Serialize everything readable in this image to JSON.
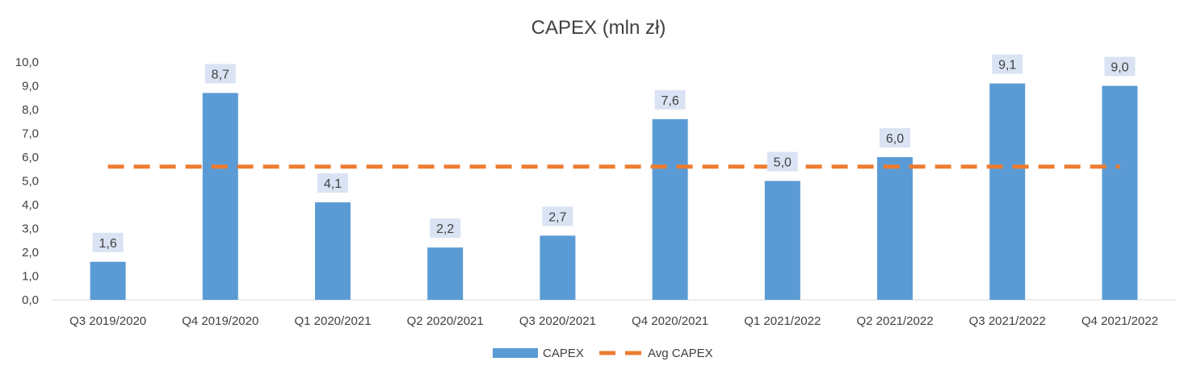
{
  "chart_data": {
    "type": "bar",
    "title": "CAPEX (mln zł)",
    "categories": [
      "Q3 2019/2020",
      "Q4 2019/2020",
      "Q1 2020/2021",
      "Q2 2020/2021",
      "Q3 2020/2021",
      "Q4 2020/2021",
      "Q1 2021/2022",
      "Q2 2021/2022",
      "Q3 2021/2022",
      "Q4 2021/2022"
    ],
    "series": [
      {
        "name": "CAPEX",
        "type": "bar",
        "values": [
          1.6,
          8.7,
          4.1,
          2.2,
          2.7,
          7.6,
          5.0,
          6.0,
          9.1,
          9.0
        ],
        "labels": [
          "1,6",
          "8,7",
          "4,1",
          "2,2",
          "2,7",
          "7,6",
          "5,0",
          "6,0",
          "9,1",
          "9,0"
        ],
        "color": "#5B9BD5"
      },
      {
        "name": "Avg CAPEX",
        "type": "line",
        "style": "dashed",
        "values": [
          5.6,
          5.6,
          5.6,
          5.6,
          5.6,
          5.6,
          5.6,
          5.6,
          5.6,
          5.6
        ],
        "color": "#ED7D31"
      }
    ],
    "y_ticks": [
      "0,0",
      "1,0",
      "2,0",
      "3,0",
      "4,0",
      "5,0",
      "6,0",
      "7,0",
      "8,0",
      "9,0",
      "10,0"
    ],
    "ylim": [
      0,
      10
    ],
    "xlabel": "",
    "ylabel": "",
    "grid": false,
    "legend": "bottom-center",
    "label_box_color": "#DAE3F3"
  }
}
